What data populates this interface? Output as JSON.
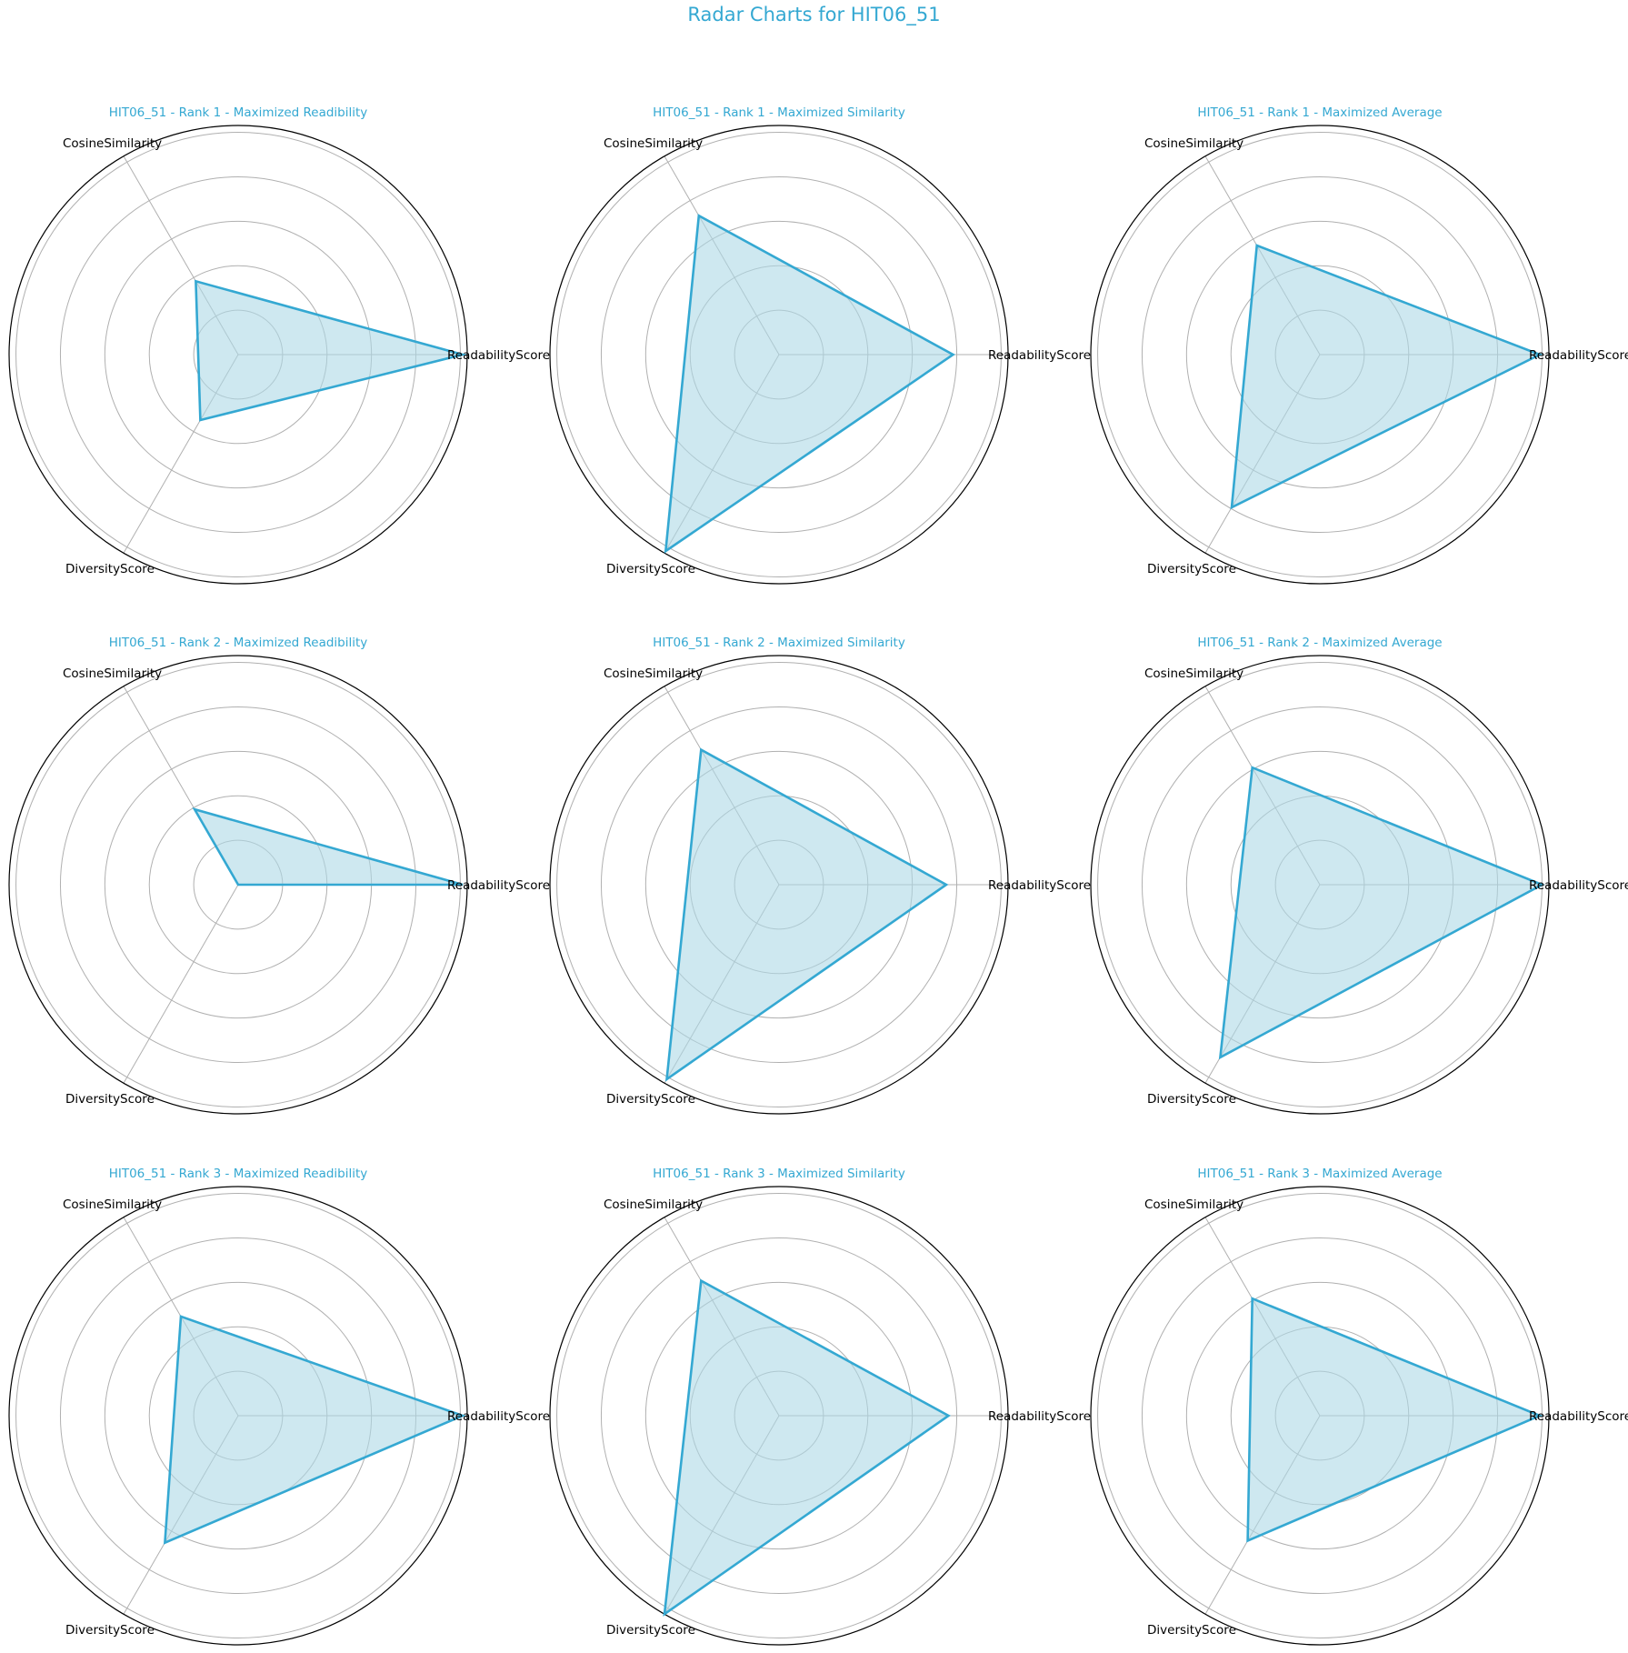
{
  "title": "Radar Charts for HIT06_51",
  "colors": {
    "accent": "#34a8d2",
    "fill": "#add8e6",
    "grid": "#b0b0b0",
    "spine": "#000000",
    "text": "#000000"
  },
  "chart_data": [
    {
      "type": "radar",
      "title": "HIT06_51 - Rank 1 - Maximized Readibility",
      "axes": [
        "ReadabilityScore",
        "CosineSimilarity",
        "DiversityScore"
      ],
      "values": [
        0.98,
        0.37,
        0.33
      ],
      "rlim": [
        0,
        1
      ]
    },
    {
      "type": "radar",
      "title": "HIT06_51 - Rank 1 - Maximized Similarity",
      "axes": [
        "ReadabilityScore",
        "CosineSimilarity",
        "DiversityScore"
      ],
      "values": [
        0.76,
        0.7,
        0.99
      ],
      "rlim": [
        0,
        1
      ]
    },
    {
      "type": "radar",
      "title": "HIT06_51 - Rank 1 - Maximized Average",
      "axes": [
        "ReadabilityScore",
        "CosineSimilarity",
        "DiversityScore"
      ],
      "values": [
        0.96,
        0.55,
        0.77
      ],
      "rlim": [
        0,
        1
      ]
    },
    {
      "type": "radar",
      "title": "HIT06_51 - Rank 2 - Maximized Readibility",
      "axes": [
        "ReadabilityScore",
        "CosineSimilarity",
        "DiversityScore"
      ],
      "values": [
        0.98,
        0.38,
        0.0
      ],
      "rlim": [
        0,
        1
      ]
    },
    {
      "type": "radar",
      "title": "HIT06_51 - Rank 2 - Maximized Similarity",
      "axes": [
        "ReadabilityScore",
        "CosineSimilarity",
        "DiversityScore"
      ],
      "values": [
        0.73,
        0.68,
        0.98
      ],
      "rlim": [
        0,
        1
      ]
    },
    {
      "type": "radar",
      "title": "HIT06_51 - Rank 2 - Maximized Average",
      "axes": [
        "ReadabilityScore",
        "CosineSimilarity",
        "DiversityScore"
      ],
      "values": [
        0.97,
        0.59,
        0.87
      ],
      "rlim": [
        0,
        1
      ]
    },
    {
      "type": "radar",
      "title": "HIT06_51 - Rank 3 - Maximized Readibility",
      "axes": [
        "ReadabilityScore",
        "CosineSimilarity",
        "DiversityScore"
      ],
      "values": [
        0.98,
        0.5,
        0.64
      ],
      "rlim": [
        0,
        1
      ]
    },
    {
      "type": "radar",
      "title": "HIT06_51 - Rank 3 - Maximized Similarity",
      "axes": [
        "ReadabilityScore",
        "CosineSimilarity",
        "DiversityScore"
      ],
      "values": [
        0.74,
        0.68,
        1.0
      ],
      "rlim": [
        0,
        1
      ]
    },
    {
      "type": "radar",
      "title": "HIT06_51 - Rank 3 - Maximized Average",
      "axes": [
        "ReadabilityScore",
        "CosineSimilarity",
        "DiversityScore"
      ],
      "values": [
        0.96,
        0.59,
        0.63
      ],
      "rlim": [
        0,
        1
      ]
    }
  ]
}
